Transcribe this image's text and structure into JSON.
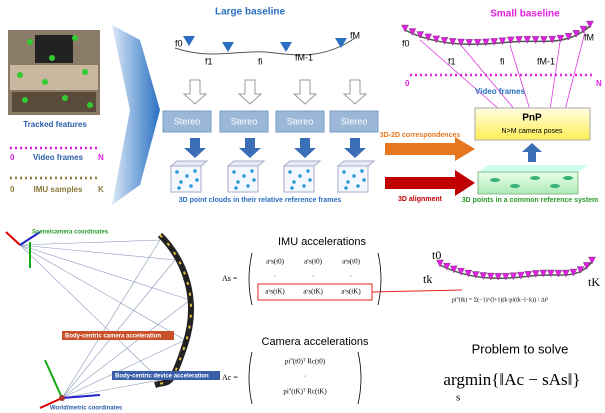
{
  "top_left": {
    "tracked_features": "Tracked features",
    "video_frames": "Video frames",
    "video_start": "0",
    "video_end": "N",
    "imu_samples": "IMU samples",
    "imu_start": "0",
    "imu_end": "K"
  },
  "large_baseline": {
    "title": "Large baseline",
    "frames": [
      "f0",
      "f1",
      "fi",
      "fM-1",
      "fM"
    ]
  },
  "stereo": [
    "Stereo",
    "Stereo",
    "Stereo",
    "Stereo"
  ],
  "point_clouds_caption": "3D point clouds in their relative reference frames",
  "correspondences": "3D-2D correspondences",
  "alignment": "3D alignment",
  "small_baseline": {
    "title": "Small baseline",
    "frames": [
      "f0",
      "f1",
      "fi",
      "fM-1",
      "fM"
    ],
    "video_frames": "Video frames",
    "video_start": "0",
    "video_end": "N"
  },
  "pnp": {
    "title": "PnP",
    "subtitle": "N>M camera poses"
  },
  "common_points": "3D points in a common reference system",
  "bottom_left": {
    "scene": "Scene/camera coordinates",
    "camera_acc": "Body-centric camera acceleration",
    "device_acc": "Body-centric device acceleration",
    "world": "World/metric coordinates"
  },
  "imu": {
    "title": "IMU accelerations",
    "lhs": "As =",
    "rows": [
      [
        "aˣs(t0)",
        "aʸs(t0)",
        "aᶻs(t0)"
      ],
      [
        "·",
        "·",
        "·"
      ],
      [
        "aˣs(tK)",
        "aʸs(tK)",
        "aᶻs(tK)"
      ]
    ]
  },
  "camera": {
    "title": "Camera accelerations",
    "lhs": "Ac =",
    "rows": [
      "pi''(t0)ᵀ Rc(t0)",
      "·",
      "pi''(tK)ᵀ Rc(tK)"
    ]
  },
  "timeline": {
    "t0": "t0",
    "tK": "tK",
    "tk": "tk",
    "formula": "pi''(tk) = Σ(−1)^(l+1)(k·pi(tk−l−k)) / Δt²"
  },
  "problem": {
    "title": "Problem to solve",
    "formula": "argmin{‖Ac − sAs‖}",
    "under": "s"
  }
}
